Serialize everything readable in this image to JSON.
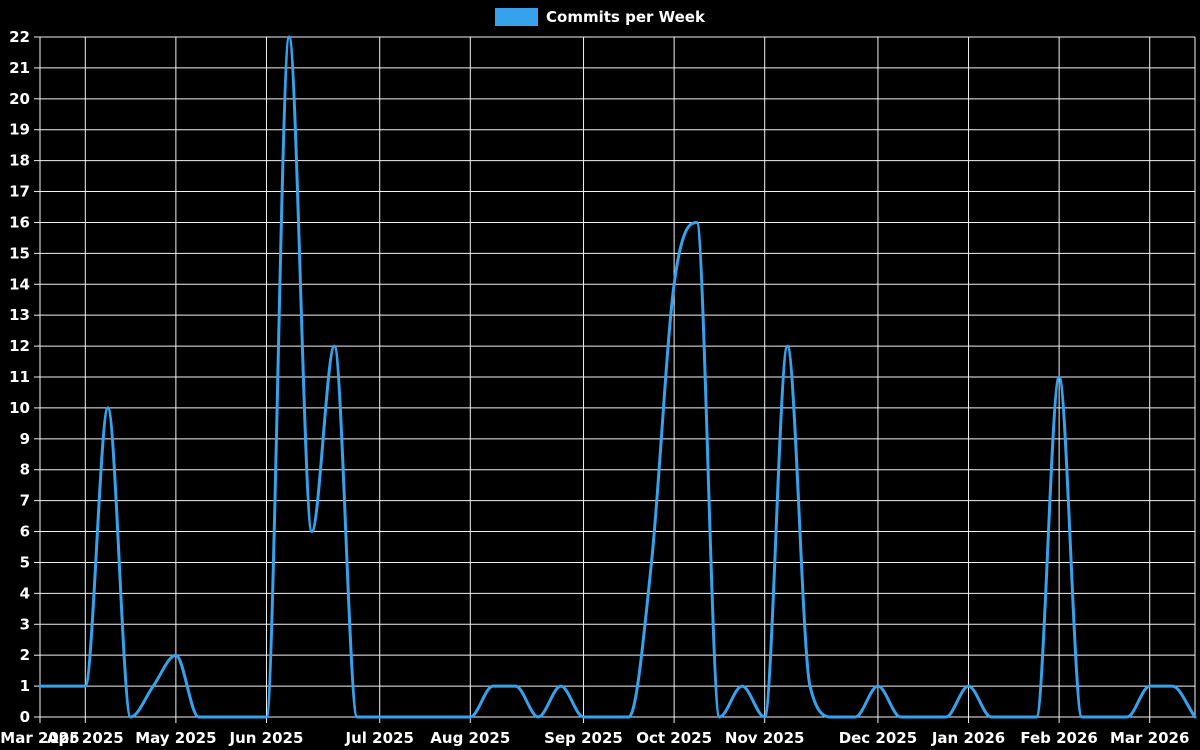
{
  "legend": {
    "label": "Commits per Week"
  },
  "colors": {
    "background": "#000000",
    "grid": "#f2f2f2",
    "text": "#ffffff",
    "line": "#36a2eb"
  },
  "chart_data": {
    "type": "line",
    "title": "",
    "series_name": "Commits per Week",
    "smoothing": "monotone-cubic",
    "grid": true,
    "legend_position": "top-center",
    "x_unit": "week",
    "ylim": [
      0,
      22
    ],
    "y_tick_step": 1,
    "values": [
      1,
      1,
      1,
      10,
      0,
      1,
      2,
      0,
      0,
      0,
      0,
      22,
      6,
      12,
      0,
      0,
      0,
      0,
      0,
      0,
      1,
      1,
      0,
      1,
      0,
      0,
      0,
      5,
      14,
      16,
      0,
      1,
      0,
      12,
      1,
      0,
      0,
      1,
      0,
      0,
      0,
      1,
      0,
      0,
      0,
      11,
      0,
      0,
      0,
      1,
      1,
      0
    ],
    "x_tick_labels": [
      "Mar 2025",
      "Apr 2025",
      "May 2025",
      "Jun 2025",
      "Jul 2025",
      "Aug 2025",
      "Sep 2025",
      "Oct 2025",
      "Nov 2025",
      "Dec 2025",
      "Jan 2026",
      "Feb 2026",
      "Mar 2026"
    ],
    "x_tick_weeks": [
      0,
      2,
      6,
      10,
      15,
      19,
      24,
      28,
      32,
      37,
      41,
      45,
      49
    ]
  }
}
